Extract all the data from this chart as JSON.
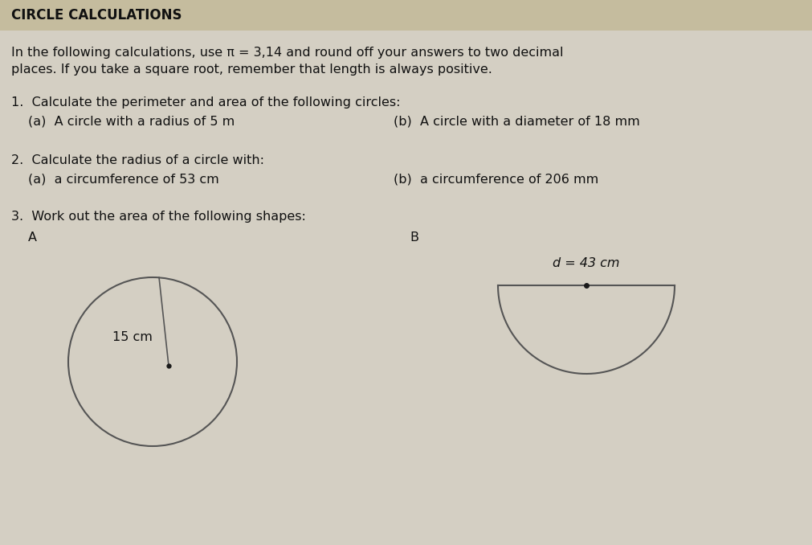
{
  "title": "CIRCLE CALCULATIONS",
  "intro_line1": "In the following calculations, use π = 3,14 and round off your answers to two decimal",
  "intro_line2": "places. If you take a square root, remember that length is always positive.",
  "q1_label": "1.  Calculate the perimeter and area of the following circles:",
  "q1a": "(a)  A circle with a radius of 5 m",
  "q1b": "(b)  A circle with a diameter of 18 mm",
  "q2_label": "2.  Calculate the radius of a circle with:",
  "q2a": "(a)  a circumference of 53 cm",
  "q2b": "(b)  a circumference of 206 mm",
  "q3_label": "3.  Work out the area of the following shapes:",
  "label_A": "A",
  "label_B": "B",
  "circle_radius_label": "15 cm",
  "semicircle_label": "d = 43 cm",
  "bg_color": "#ccc5b4",
  "page_color": "#d4cfc3",
  "text_color": "#111111",
  "shape_color": "#555555",
  "title_bg": "#c5bc9e",
  "title_fontsize": 12,
  "body_fontsize": 11.5
}
